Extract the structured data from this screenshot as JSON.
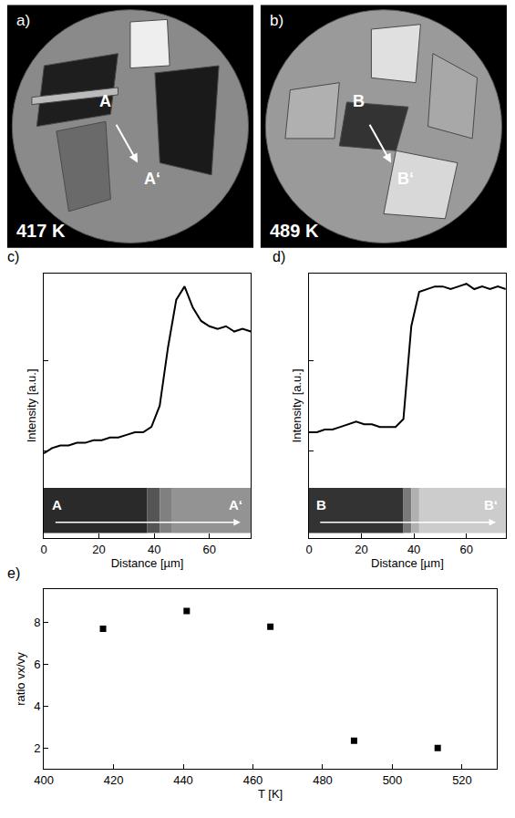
{
  "images": [
    {
      "panel": "a)",
      "temperature_label": "417 K",
      "from_label": "A",
      "to_label": "A‘"
    },
    {
      "panel": "b)",
      "temperature_label": "489 K",
      "from_label": "B",
      "to_label": "B‘"
    }
  ],
  "chart_data": [
    {
      "panel": "c)",
      "type": "line",
      "xlabel": "Distance [µm]",
      "ylabel": "Intensity [a.u.]",
      "x": [
        0,
        3,
        6,
        9,
        12,
        15,
        18,
        21,
        24,
        27,
        30,
        33,
        36,
        39,
        42,
        45,
        48,
        51,
        54,
        57,
        60,
        63,
        66,
        69,
        72,
        75
      ],
      "values": [
        0.32,
        0.34,
        0.35,
        0.35,
        0.36,
        0.36,
        0.37,
        0.37,
        0.38,
        0.38,
        0.39,
        0.4,
        0.4,
        0.42,
        0.5,
        0.72,
        0.9,
        0.95,
        0.87,
        0.82,
        0.8,
        0.79,
        0.8,
        0.78,
        0.79,
        0.78
      ],
      "color": "#000000",
      "xlim": [
        0,
        75
      ],
      "xticks": [
        0,
        20,
        40,
        60
      ],
      "ylim": [
        0,
        1
      ],
      "yticks": [
        0.33,
        0.67
      ],
      "tick_labels": "x",
      "grid": false,
      "strip_labels": [
        "A",
        "A‘"
      ]
    },
    {
      "panel": "d)",
      "type": "line",
      "xlabel": "Distance [µm]",
      "ylabel": "Intensity [a.u.]",
      "x": [
        0,
        3,
        6,
        9,
        12,
        15,
        18,
        21,
        24,
        27,
        30,
        33,
        36,
        39,
        42,
        45,
        48,
        51,
        54,
        57,
        60,
        63,
        66,
        69,
        72,
        75
      ],
      "values": [
        0.4,
        0.4,
        0.41,
        0.41,
        0.42,
        0.43,
        0.44,
        0.43,
        0.43,
        0.42,
        0.42,
        0.42,
        0.45,
        0.8,
        0.93,
        0.94,
        0.95,
        0.95,
        0.94,
        0.95,
        0.96,
        0.94,
        0.95,
        0.94,
        0.95,
        0.94
      ],
      "color": "#000000",
      "xlim": [
        0,
        75
      ],
      "xticks": [
        0,
        20,
        40,
        60
      ],
      "ylim": [
        0,
        1
      ],
      "yticks": [
        0.33,
        0.67
      ],
      "tick_labels": "x",
      "grid": false,
      "strip_labels": [
        "B",
        "B‘"
      ]
    },
    {
      "panel": "e)",
      "type": "scatter",
      "xlabel": "T [K]",
      "ylabel": "ratio vx/vy",
      "x": [
        417,
        441,
        465,
        489,
        513
      ],
      "values": [
        7.7,
        8.55,
        7.8,
        2.35,
        2.0
      ],
      "color": "#000000",
      "marker": "square",
      "xlim": [
        400,
        530
      ],
      "xticks": [
        400,
        420,
        440,
        460,
        480,
        500,
        520
      ],
      "ylim": [
        1,
        9.6
      ],
      "yticks": [
        2,
        4,
        6,
        8
      ],
      "grid": false
    }
  ]
}
